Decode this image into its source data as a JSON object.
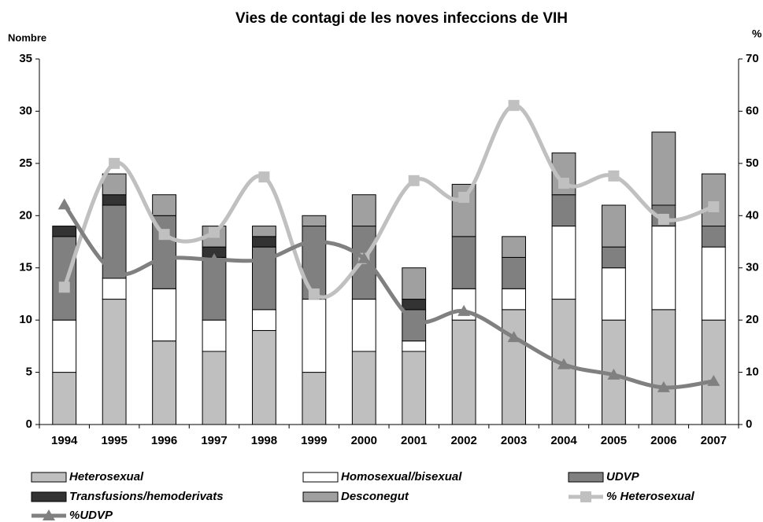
{
  "chart_data": {
    "type": "bar",
    "stacked": true,
    "title": "Vies de contagi de les noves infeccions de VIH",
    "y_label": "Nombre",
    "y2_label": "%",
    "categories": [
      "1994",
      "1995",
      "1996",
      "1997",
      "1998",
      "1999",
      "2000",
      "2001",
      "2002",
      "2003",
      "2004",
      "2005",
      "2006",
      "2007"
    ],
    "series": [
      {
        "name": "Heterosexual",
        "color": "#bfbfbf",
        "values": [
          5,
          12,
          8,
          7,
          9,
          5,
          7,
          7,
          10,
          11,
          12,
          10,
          11,
          10
        ]
      },
      {
        "name": "Homosexual/bisexual",
        "color": "#ffffff",
        "values": [
          5,
          2,
          5,
          3,
          2,
          7,
          5,
          1,
          3,
          2,
          7,
          5,
          8,
          7
        ]
      },
      {
        "name": "UDVP",
        "color": "#808080",
        "values": [
          8,
          7,
          7,
          6,
          6,
          7,
          7,
          3,
          5,
          3,
          3,
          2,
          2,
          2
        ]
      },
      {
        "name": "Transfusions/hemoderivats",
        "color": "#333333",
        "values": [
          1,
          1,
          0,
          1,
          1,
          0,
          0,
          1,
          0,
          0,
          0,
          0,
          0,
          0
        ]
      },
      {
        "name": "Desconegut",
        "color": "#a0a0a0",
        "values": [
          0,
          2,
          2,
          2,
          1,
          1,
          3,
          3,
          5,
          2,
          4,
          4,
          7,
          5
        ]
      },
      {
        "name": "% Heterosexual",
        "type": "line",
        "marker": "square",
        "axis": "y2",
        "color": "#c0c0c0",
        "values": [
          26.3,
          50,
          36.4,
          36.8,
          47.4,
          25,
          31.8,
          46.7,
          43.5,
          61.1,
          46.2,
          47.6,
          39.3,
          41.7
        ]
      },
      {
        "name": "%UDVP",
        "type": "line",
        "marker": "triangle",
        "axis": "y2",
        "color": "#808080",
        "values": [
          42.1,
          29.2,
          31.8,
          31.6,
          31.6,
          35,
          31.8,
          20,
          21.7,
          16.7,
          11.5,
          9.5,
          7.1,
          8.3
        ]
      }
    ],
    "ylim": [
      0,
      35
    ],
    "yticks": [
      0,
      5,
      10,
      15,
      20,
      25,
      30,
      35
    ],
    "y2lim": [
      0,
      70
    ],
    "y2ticks": [
      0,
      10,
      20,
      30,
      40,
      50,
      60,
      70
    ],
    "grid": false,
    "legend": "bottom"
  }
}
